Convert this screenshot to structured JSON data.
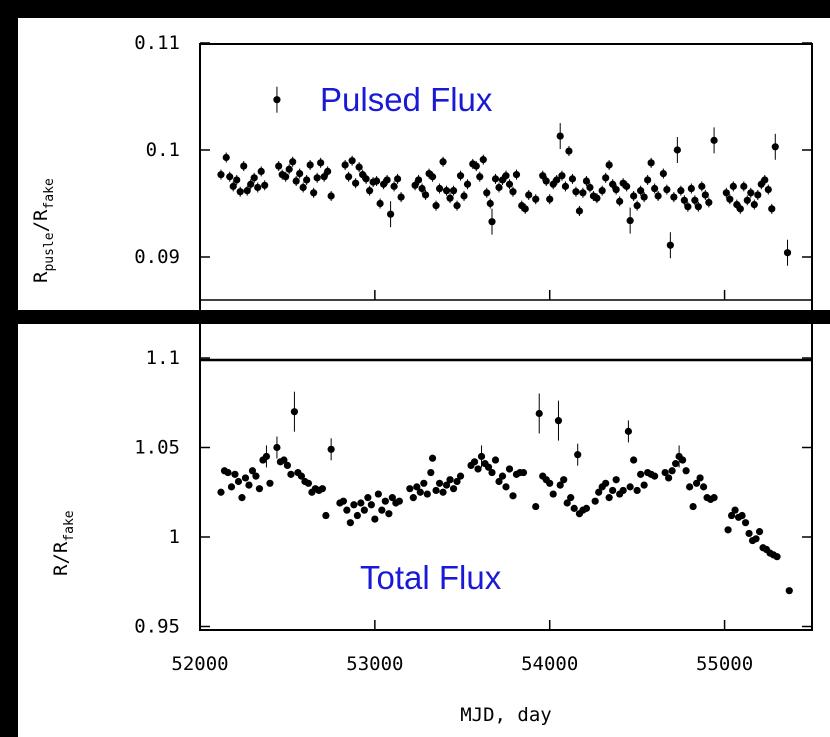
{
  "chart_data": [
    {
      "type": "scatter",
      "panel": "top",
      "ylabel_main": "R",
      "ylabel_sub1": "pusle",
      "ylabel_sep": "/R",
      "ylabel_sub2": "fake",
      "annotation": "Pulsed Flux",
      "xlim": [
        52000,
        55500
      ],
      "ylim": [
        0.085,
        0.11
      ],
      "yticks": [
        0.09,
        0.1,
        0.11
      ],
      "ytick_labels": [
        "0.09",
        "0.1",
        "0.11"
      ],
      "points": [
        [
          52120,
          0.0977
        ],
        [
          52150,
          0.0993
        ],
        [
          52170,
          0.0975
        ],
        [
          52190,
          0.0966
        ],
        [
          52210,
          0.0972
        ],
        [
          52230,
          0.0961
        ],
        [
          52250,
          0.0985
        ],
        [
          52270,
          0.0962
        ],
        [
          52290,
          0.0968
        ],
        [
          52310,
          0.0974
        ],
        [
          52330,
          0.0965
        ],
        [
          52350,
          0.098
        ],
        [
          52370,
          0.0967
        ],
        [
          52440,
          0.1047
        ],
        [
          52450,
          0.0985
        ],
        [
          52470,
          0.0977
        ],
        [
          52490,
          0.0975
        ],
        [
          52510,
          0.0982
        ],
        [
          52530,
          0.0989
        ],
        [
          52550,
          0.0971
        ],
        [
          52570,
          0.0978
        ],
        [
          52590,
          0.0965
        ],
        [
          52610,
          0.0972
        ],
        [
          52630,
          0.0986
        ],
        [
          52650,
          0.096
        ],
        [
          52670,
          0.0974
        ],
        [
          52690,
          0.0988
        ],
        [
          52710,
          0.0975
        ],
        [
          52730,
          0.098
        ],
        [
          52750,
          0.0957
        ],
        [
          52830,
          0.0986
        ],
        [
          52850,
          0.0975
        ],
        [
          52870,
          0.099
        ],
        [
          52890,
          0.0969
        ],
        [
          52910,
          0.0984
        ],
        [
          52930,
          0.0977
        ],
        [
          52950,
          0.0973
        ],
        [
          52970,
          0.0962
        ],
        [
          52990,
          0.097
        ],
        [
          53010,
          0.0971
        ],
        [
          53030,
          0.095
        ],
        [
          53050,
          0.0968
        ],
        [
          53070,
          0.0972
        ],
        [
          53090,
          0.094
        ],
        [
          53110,
          0.0966
        ],
        [
          53130,
          0.0973
        ],
        [
          53150,
          0.0956
        ],
        [
          53230,
          0.0967
        ],
        [
          53250,
          0.0972
        ],
        [
          53270,
          0.0964
        ],
        [
          53290,
          0.0958
        ],
        [
          53310,
          0.0978
        ],
        [
          53330,
          0.0975
        ],
        [
          53350,
          0.0948
        ],
        [
          53370,
          0.0964
        ],
        [
          53390,
          0.0989
        ],
        [
          53410,
          0.0962
        ],
        [
          53430,
          0.0955
        ],
        [
          53450,
          0.0962
        ],
        [
          53470,
          0.0948
        ],
        [
          53490,
          0.0976
        ],
        [
          53510,
          0.0957
        ],
        [
          53530,
          0.0968
        ],
        [
          53560,
          0.0987
        ],
        [
          53580,
          0.0985
        ],
        [
          53600,
          0.0975
        ],
        [
          53620,
          0.0991
        ],
        [
          53640,
          0.096
        ],
        [
          53660,
          0.095
        ],
        [
          53670,
          0.0933
        ],
        [
          53690,
          0.0973
        ],
        [
          53710,
          0.0965
        ],
        [
          53730,
          0.0972
        ],
        [
          53750,
          0.0976
        ],
        [
          53770,
          0.0968
        ],
        [
          53790,
          0.0961
        ],
        [
          53810,
          0.0977
        ],
        [
          53840,
          0.0948
        ],
        [
          53860,
          0.0945
        ],
        [
          53880,
          0.0958
        ],
        [
          53920,
          0.0954
        ],
        [
          53960,
          0.0976
        ],
        [
          53980,
          0.0971
        ],
        [
          54000,
          0.0954
        ],
        [
          54020,
          0.0968
        ],
        [
          54040,
          0.0972
        ],
        [
          54060,
          0.1013
        ],
        [
          54070,
          0.0976
        ],
        [
          54090,
          0.0966
        ],
        [
          54110,
          0.0999
        ],
        [
          54130,
          0.0973
        ],
        [
          54150,
          0.0961
        ],
        [
          54170,
          0.0943
        ],
        [
          54190,
          0.096
        ],
        [
          54210,
          0.0971
        ],
        [
          54230,
          0.0965
        ],
        [
          54250,
          0.0957
        ],
        [
          54270,
          0.0955
        ],
        [
          54300,
          0.0962
        ],
        [
          54320,
          0.0974
        ],
        [
          54340,
          0.0986
        ],
        [
          54360,
          0.0968
        ],
        [
          54380,
          0.0963
        ],
        [
          54400,
          0.0952
        ],
        [
          54420,
          0.0969
        ],
        [
          54440,
          0.0966
        ],
        [
          54460,
          0.0934
        ],
        [
          54480,
          0.0957
        ],
        [
          54500,
          0.0948
        ],
        [
          54520,
          0.0962
        ],
        [
          54540,
          0.0956
        ],
        [
          54560,
          0.0972
        ],
        [
          54580,
          0.0988
        ],
        [
          54600,
          0.0964
        ],
        [
          54620,
          0.0957
        ],
        [
          54650,
          0.0978
        ],
        [
          54670,
          0.0963
        ],
        [
          54690,
          0.0911
        ],
        [
          54710,
          0.0956
        ],
        [
          54730,
          0.1
        ],
        [
          54750,
          0.0962
        ],
        [
          54770,
          0.0953
        ],
        [
          54790,
          0.0947
        ],
        [
          54810,
          0.0964
        ],
        [
          54830,
          0.0953
        ],
        [
          54850,
          0.0947
        ],
        [
          54870,
          0.0966
        ],
        [
          54890,
          0.0958
        ],
        [
          54910,
          0.0951
        ],
        [
          54940,
          0.1009
        ],
        [
          55010,
          0.096
        ],
        [
          55030,
          0.0954
        ],
        [
          55050,
          0.0966
        ],
        [
          55070,
          0.0949
        ],
        [
          55090,
          0.0945
        ],
        [
          55110,
          0.0966
        ],
        [
          55130,
          0.0953
        ],
        [
          55150,
          0.096
        ],
        [
          55170,
          0.0949
        ],
        [
          55190,
          0.0958
        ],
        [
          55210,
          0.0968
        ],
        [
          55230,
          0.0972
        ],
        [
          55250,
          0.0963
        ],
        [
          55270,
          0.0945
        ],
        [
          55290,
          0.1003
        ],
        [
          55360,
          0.0904
        ]
      ]
    },
    {
      "type": "scatter",
      "panel": "bottom",
      "ylabel_main": "R/R",
      "ylabel_sub": "fake",
      "annotation": "Total Flux",
      "xlabel": "MJD, day",
      "xlim": [
        52000,
        55500
      ],
      "ylim": [
        0.95,
        1.11
      ],
      "yticks": [
        0.95,
        1,
        1.05,
        1.1
      ],
      "ytick_labels": [
        "0.95",
        "1",
        "1.05",
        "1.1"
      ],
      "xticks": [
        52000,
        53000,
        54000,
        55000
      ],
      "xtick_labels": [
        "52000",
        "53000",
        "54000",
        "55000"
      ],
      "points": [
        [
          52120,
          1.025
        ],
        [
          52140,
          1.037
        ],
        [
          52160,
          1.036
        ],
        [
          52180,
          1.028
        ],
        [
          52200,
          1.035
        ],
        [
          52220,
          1.031
        ],
        [
          52240,
          1.022
        ],
        [
          52260,
          1.033
        ],
        [
          52280,
          1.029
        ],
        [
          52300,
          1.037
        ],
        [
          52320,
          1.034
        ],
        [
          52340,
          1.027
        ],
        [
          52360,
          1.043
        ],
        [
          52380,
          1.045
        ],
        [
          52400,
          1.03
        ],
        [
          52440,
          1.05
        ],
        [
          52460,
          1.042
        ],
        [
          52480,
          1.043
        ],
        [
          52500,
          1.04
        ],
        [
          52520,
          1.035
        ],
        [
          52540,
          1.07
        ],
        [
          52560,
          1.036
        ],
        [
          52580,
          1.034
        ],
        [
          52600,
          1.031
        ],
        [
          52620,
          1.03
        ],
        [
          52640,
          1.025
        ],
        [
          52660,
          1.027
        ],
        [
          52680,
          1.026
        ],
        [
          52700,
          1.027
        ],
        [
          52720,
          1.012
        ],
        [
          52750,
          1.049
        ],
        [
          52800,
          1.019
        ],
        [
          52820,
          1.02
        ],
        [
          52840,
          1.015
        ],
        [
          52860,
          1.008
        ],
        [
          52880,
          1.018
        ],
        [
          52900,
          1.012
        ],
        [
          52920,
          1.019
        ],
        [
          52940,
          1.015
        ],
        [
          52960,
          1.022
        ],
        [
          52980,
          1.018
        ],
        [
          53000,
          1.01
        ],
        [
          53020,
          1.024
        ],
        [
          53040,
          1.015
        ],
        [
          53060,
          1.02
        ],
        [
          53080,
          1.013
        ],
        [
          53100,
          1.022
        ],
        [
          53120,
          1.019
        ],
        [
          53140,
          1.02
        ],
        [
          53200,
          1.027
        ],
        [
          53220,
          1.022
        ],
        [
          53240,
          1.028
        ],
        [
          53260,
          1.025
        ],
        [
          53280,
          1.03
        ],
        [
          53300,
          1.024
        ],
        [
          53320,
          1.036
        ],
        [
          53330,
          1.044
        ],
        [
          53350,
          1.026
        ],
        [
          53370,
          1.03
        ],
        [
          53390,
          1.025
        ],
        [
          53410,
          1.029
        ],
        [
          53430,
          1.032
        ],
        [
          53450,
          1.027
        ],
        [
          53470,
          1.031
        ],
        [
          53490,
          1.034
        ],
        [
          53550,
          1.04
        ],
        [
          53570,
          1.042
        ],
        [
          53590,
          1.038
        ],
        [
          53610,
          1.045
        ],
        [
          53630,
          1.041
        ],
        [
          53650,
          1.039
        ],
        [
          53670,
          1.036
        ],
        [
          53690,
          1.043
        ],
        [
          53710,
          1.031
        ],
        [
          53730,
          1.034
        ],
        [
          53750,
          1.028
        ],
        [
          53770,
          1.038
        ],
        [
          53790,
          1.023
        ],
        [
          53810,
          1.035
        ],
        [
          53830,
          1.036
        ],
        [
          53850,
          1.036
        ],
        [
          53920,
          1.017
        ],
        [
          53940,
          1.069
        ],
        [
          53960,
          1.034
        ],
        [
          53980,
          1.032
        ],
        [
          54000,
          1.03
        ],
        [
          54020,
          1.024
        ],
        [
          54050,
          1.065
        ],
        [
          54060,
          1.029
        ],
        [
          54080,
          1.032
        ],
        [
          54100,
          1.019
        ],
        [
          54120,
          1.022
        ],
        [
          54140,
          1.016
        ],
        [
          54160,
          1.046
        ],
        [
          54170,
          1.013
        ],
        [
          54190,
          1.015
        ],
        [
          54210,
          1.016
        ],
        [
          54260,
          1.02
        ],
        [
          54280,
          1.025
        ],
        [
          54300,
          1.028
        ],
        [
          54320,
          1.03
        ],
        [
          54340,
          1.022
        ],
        [
          54360,
          1.026
        ],
        [
          54380,
          1.032
        ],
        [
          54400,
          1.024
        ],
        [
          54420,
          1.026
        ],
        [
          54450,
          1.059
        ],
        [
          54460,
          1.028
        ],
        [
          54480,
          1.043
        ],
        [
          54500,
          1.026
        ],
        [
          54520,
          1.035
        ],
        [
          54540,
          1.029
        ],
        [
          54560,
          1.036
        ],
        [
          54580,
          1.035
        ],
        [
          54600,
          1.034
        ],
        [
          54660,
          1.036
        ],
        [
          54680,
          1.033
        ],
        [
          54700,
          1.037
        ],
        [
          54720,
          1.041
        ],
        [
          54740,
          1.045
        ],
        [
          54760,
          1.043
        ],
        [
          54780,
          1.037
        ],
        [
          54800,
          1.028
        ],
        [
          54820,
          1.017
        ],
        [
          54840,
          1.03
        ],
        [
          54860,
          1.033
        ],
        [
          54880,
          1.028
        ],
        [
          54900,
          1.022
        ],
        [
          54920,
          1.021
        ],
        [
          54940,
          1.022
        ],
        [
          55020,
          1.004
        ],
        [
          55040,
          1.012
        ],
        [
          55060,
          1.015
        ],
        [
          55080,
          1.011
        ],
        [
          55100,
          1.012
        ],
        [
          55120,
          1.008
        ],
        [
          55140,
          1.002
        ],
        [
          55160,
          0.998
        ],
        [
          55180,
          0.999
        ],
        [
          55200,
          1.003
        ],
        [
          55220,
          0.994
        ],
        [
          55240,
          0.993
        ],
        [
          55260,
          0.991
        ],
        [
          55280,
          0.99
        ],
        [
          55300,
          0.989
        ],
        [
          55370,
          0.97
        ]
      ]
    }
  ]
}
